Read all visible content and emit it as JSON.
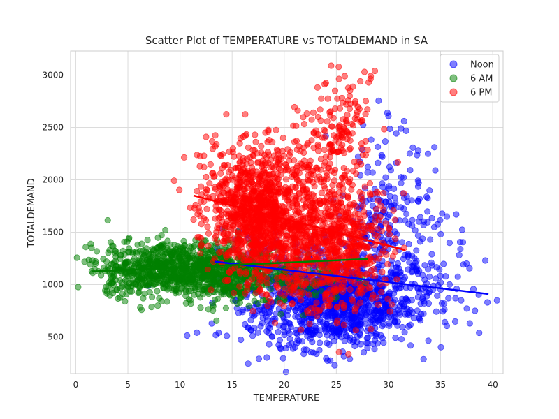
{
  "chart_data": {
    "type": "scatter",
    "title": "Scatter Plot of TEMPERATURE vs TOTALDEMAND in SA",
    "xlabel": "TEMPERATURE",
    "ylabel": "TOTALDEMAND",
    "xlim": [
      -0.5,
      41
    ],
    "ylim": [
      150,
      3230
    ],
    "xticks": [
      0,
      5,
      10,
      15,
      20,
      25,
      30,
      35,
      40
    ],
    "yticks": [
      500,
      1000,
      1500,
      2000,
      2500,
      3000
    ],
    "grid": true,
    "legend_position": "top-right",
    "series": [
      {
        "name": "Noon",
        "color": "#0000ff",
        "alpha": 0.5,
        "cloud": [
          {
            "cx": 25.5,
            "cy": 800,
            "sx": 3.5,
            "sy": 200,
            "n": 750
          },
          {
            "cx": 22.0,
            "cy": 950,
            "sx": 4.0,
            "sy": 250,
            "n": 350
          },
          {
            "cx": 30.0,
            "cy": 1500,
            "sx": 2.5,
            "sy": 300,
            "n": 180
          },
          {
            "cx": 33.0,
            "cy": 950,
            "sx": 2.5,
            "sy": 250,
            "n": 100
          },
          {
            "cx": 30.0,
            "cy": 2100,
            "sx": 2.0,
            "sy": 250,
            "n": 40
          },
          {
            "cx": 18.0,
            "cy": 1000,
            "sx": 2.5,
            "sy": 300,
            "n": 60
          }
        ],
        "points": [
          [
            13.7,
            540
          ],
          [
            14.5,
            510
          ],
          [
            16.5,
            590
          ],
          [
            36.5,
            1670
          ],
          [
            35.6,
            1650
          ],
          [
            37.5,
            1200
          ],
          [
            38.3,
            750
          ],
          [
            39.5,
            830
          ],
          [
            39.3,
            1230
          ],
          [
            38.7,
            540
          ],
          [
            37.8,
            630
          ],
          [
            34.5,
            2090
          ],
          [
            29.9,
            2640
          ],
          [
            30.0,
            2610
          ],
          [
            31.5,
            2560
          ],
          [
            31.2,
            2490
          ],
          [
            26.3,
            290
          ],
          [
            22.8,
            350
          ],
          [
            23.1,
            340
          ],
          [
            21.2,
            440
          ]
        ],
        "trend": {
          "x": [
            13.3,
            39.6
          ],
          "y": [
            1220,
            910
          ]
        }
      },
      {
        "name": "6 AM",
        "color": "#008000",
        "alpha": 0.5,
        "cloud": [
          {
            "cx": 10.0,
            "cy": 1150,
            "sx": 3.5,
            "sy": 130,
            "n": 650
          },
          {
            "cx": 14.0,
            "cy": 1100,
            "sx": 2.5,
            "sy": 150,
            "n": 300
          },
          {
            "cx": 6.0,
            "cy": 1150,
            "sx": 2.0,
            "sy": 120,
            "n": 150
          },
          {
            "cx": 20.0,
            "cy": 1080,
            "sx": 3.0,
            "sy": 120,
            "n": 120
          }
        ],
        "points": [
          [
            1.6,
            1230
          ],
          [
            1.9,
            1220
          ],
          [
            2.8,
            1130
          ],
          [
            3.4,
            1050
          ],
          [
            3.5,
            1370
          ],
          [
            4.3,
            1280
          ],
          [
            8.6,
            1520
          ],
          [
            14.3,
            1540
          ],
          [
            16.5,
            1550
          ],
          [
            15.5,
            820
          ],
          [
            17.5,
            820
          ],
          [
            25.0,
            880
          ],
          [
            11.0,
            850
          ],
          [
            6.0,
            920
          ]
        ],
        "trend": {
          "x": [
            1.5,
            28.0
          ],
          "y": [
            1125,
            1245
          ]
        }
      },
      {
        "name": "6 PM",
        "color": "#ff0000",
        "alpha": 0.5,
        "cloud": [
          {
            "cx": 17.0,
            "cy": 1700,
            "sx": 1.8,
            "sy": 280,
            "n": 700
          },
          {
            "cx": 21.0,
            "cy": 1450,
            "sx": 3.0,
            "sy": 300,
            "n": 750
          },
          {
            "cx": 26.0,
            "cy": 1350,
            "sx": 2.2,
            "sy": 300,
            "n": 400
          },
          {
            "cx": 25.5,
            "cy": 2500,
            "sx": 1.5,
            "sy": 220,
            "n": 120
          },
          {
            "cx": 22.0,
            "cy": 2100,
            "sx": 2.5,
            "sy": 200,
            "n": 120
          },
          {
            "cx": 13.0,
            "cy": 1800,
            "sx": 1.2,
            "sy": 250,
            "n": 60
          }
        ],
        "points": [
          [
            11.3,
            1620
          ],
          [
            11.5,
            1760
          ],
          [
            11.9,
            2130
          ],
          [
            12.3,
            2230
          ],
          [
            12.5,
            2410
          ],
          [
            13.5,
            2340
          ],
          [
            18.2,
            2450
          ],
          [
            19.9,
            2400
          ],
          [
            24.5,
            3090
          ],
          [
            25.8,
            2990
          ],
          [
            27.7,
            3030
          ],
          [
            28.3,
            2990
          ],
          [
            28.7,
            3040
          ],
          [
            28.1,
            2930
          ],
          [
            27.3,
            2940
          ],
          [
            30.1,
            1480
          ],
          [
            31.5,
            1350
          ]
        ],
        "trend": {
          "x": [
            11.3,
            31.6
          ],
          "y": [
            1850,
            1330
          ]
        }
      }
    ]
  }
}
